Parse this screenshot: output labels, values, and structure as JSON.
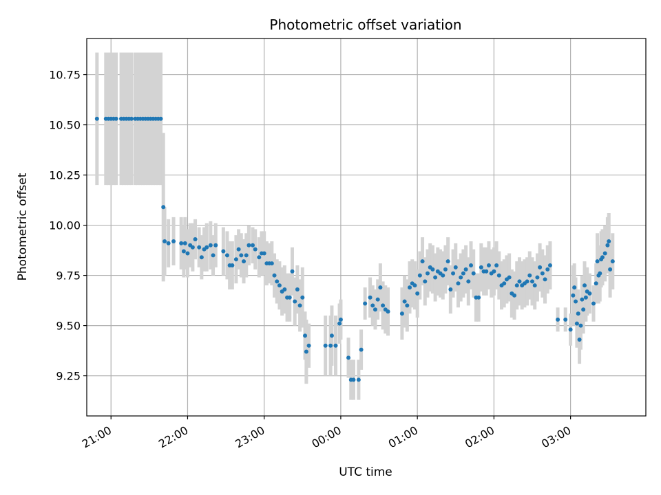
{
  "chart_data": {
    "type": "scatter",
    "title": "Photometric offset variation",
    "xlabel": "UTC time",
    "ylabel": "Photometric offset",
    "x_ticks": [
      "21:00",
      "22:00",
      "23:00",
      "00:00",
      "01:00",
      "02:00",
      "03:00"
    ],
    "y_ticks": [
      "9.25",
      "9.50",
      "9.75",
      "10.00",
      "10.25",
      "10.50",
      "10.75"
    ],
    "xlim": [
      "20:41",
      "03:59"
    ],
    "ylim": [
      9.05,
      10.93
    ],
    "grid": true,
    "colors": {
      "points": "#1f77b4",
      "errorbars": "#d3d3d3",
      "grid": "#b0b0b0"
    },
    "series": [
      {
        "points": [
          [
            "20:49",
            10.53,
            0.33
          ],
          [
            "20:56",
            10.53,
            0.33
          ],
          [
            "20:58",
            10.53,
            0.33
          ],
          [
            "21:00",
            10.53,
            0.33
          ],
          [
            "21:02",
            10.53,
            0.33
          ],
          [
            "21:04",
            10.53,
            0.33
          ],
          [
            "21:08",
            10.53,
            0.33
          ],
          [
            "21:10",
            10.53,
            0.33
          ],
          [
            "21:12",
            10.53,
            0.33
          ],
          [
            "21:14",
            10.53,
            0.33
          ],
          [
            "21:16",
            10.53,
            0.33
          ],
          [
            "21:19",
            10.53,
            0.33
          ],
          [
            "21:21",
            10.53,
            0.33
          ],
          [
            "21:23",
            10.53,
            0.33
          ],
          [
            "21:25",
            10.53,
            0.33
          ],
          [
            "21:27",
            10.53,
            0.33
          ],
          [
            "21:29",
            10.53,
            0.33
          ],
          [
            "21:31",
            10.53,
            0.33
          ],
          [
            "21:33",
            10.53,
            0.33
          ],
          [
            "21:35",
            10.53,
            0.33
          ],
          [
            "21:37",
            10.53,
            0.33
          ],
          [
            "21:39",
            10.53,
            0.33
          ],
          [
            "21:41",
            10.09,
            0.37
          ],
          [
            "21:42",
            9.92,
            0.17
          ],
          [
            "21:45",
            9.91,
            0.12
          ],
          [
            "21:49",
            9.92,
            0.12
          ],
          [
            "21:55",
            9.91,
            0.13
          ],
          [
            "21:57",
            9.87,
            0.13
          ],
          [
            "21:58",
            9.91,
            0.13
          ],
          [
            "22:00",
            9.86,
            0.12
          ],
          [
            "22:02",
            9.9,
            0.11
          ],
          [
            "22:04",
            9.89,
            0.12
          ],
          [
            "22:06",
            9.93,
            0.1
          ],
          [
            "22:09",
            9.89,
            0.1
          ],
          [
            "22:11",
            9.84,
            0.11
          ],
          [
            "22:13",
            9.88,
            0.11
          ],
          [
            "22:15",
            9.89,
            0.12
          ],
          [
            "22:18",
            9.9,
            0.12
          ],
          [
            "22:20",
            9.85,
            0.1
          ],
          [
            "22:22",
            9.9,
            0.11
          ],
          [
            "22:28",
            9.87,
            0.12
          ],
          [
            "22:31",
            9.85,
            0.12
          ],
          [
            "22:33",
            9.8,
            0.12
          ],
          [
            "22:35",
            9.8,
            0.12
          ],
          [
            "22:38",
            9.83,
            0.12
          ],
          [
            "22:40",
            9.88,
            0.1
          ],
          [
            "22:42",
            9.85,
            0.11
          ],
          [
            "22:44",
            9.82,
            0.11
          ],
          [
            "22:46",
            9.85,
            0.11
          ],
          [
            "22:48",
            9.9,
            0.1
          ],
          [
            "22:51",
            9.9,
            0.09
          ],
          [
            "22:53",
            9.88,
            0.1
          ],
          [
            "22:56",
            9.84,
            0.1
          ],
          [
            "22:58",
            9.86,
            0.11
          ],
          [
            "23:00",
            9.86,
            0.11
          ],
          [
            "23:02",
            9.81,
            0.11
          ],
          [
            "23:04",
            9.81,
            0.1
          ],
          [
            "23:06",
            9.81,
            0.11
          ],
          [
            "23:08",
            9.75,
            0.11
          ],
          [
            "23:10",
            9.72,
            0.11
          ],
          [
            "23:12",
            9.7,
            0.12
          ],
          [
            "23:14",
            9.67,
            0.12
          ],
          [
            "23:16",
            9.68,
            0.12
          ],
          [
            "23:18",
            9.64,
            0.12
          ],
          [
            "23:20",
            9.64,
            0.12
          ],
          [
            "23:22",
            9.77,
            0.12
          ],
          [
            "23:24",
            9.62,
            0.12
          ],
          [
            "23:26",
            9.68,
            0.12
          ],
          [
            "23:28",
            9.6,
            0.13
          ],
          [
            "23:30",
            9.64,
            0.15
          ],
          [
            "23:32",
            9.45,
            0.12
          ],
          [
            "23:33",
            9.37,
            0.16
          ],
          [
            "23:35",
            9.4,
            0.11
          ],
          [
            "23:48",
            9.4,
            0.15
          ],
          [
            "23:52",
            9.4,
            0.15
          ],
          [
            "23:53",
            9.45,
            0.15
          ],
          [
            "23:56",
            9.4,
            0.15
          ],
          [
            "23:59",
            9.51,
            0.1
          ],
          [
            "00:00",
            9.53,
            0.1
          ],
          [
            "00:06",
            9.34,
            0.1
          ],
          [
            "00:08",
            9.23,
            0.1
          ],
          [
            "00:10",
            9.23,
            0.1
          ],
          [
            "00:14",
            9.23,
            0.1
          ],
          [
            "00:16",
            9.38,
            0.1
          ],
          [
            "00:19",
            9.61,
            0.08
          ],
          [
            "00:23",
            9.64,
            0.1
          ],
          [
            "00:25",
            9.6,
            0.1
          ],
          [
            "00:27",
            9.58,
            0.1
          ],
          [
            "00:29",
            9.63,
            0.1
          ],
          [
            "00:31",
            9.69,
            0.12
          ],
          [
            "00:33",
            9.6,
            0.12
          ],
          [
            "00:35",
            9.58,
            0.12
          ],
          [
            "00:37",
            9.57,
            0.12
          ],
          [
            "00:48",
            9.56,
            0.13
          ],
          [
            "00:50",
            9.62,
            0.13
          ],
          [
            "00:52",
            9.6,
            0.13
          ],
          [
            "00:54",
            9.69,
            0.13
          ],
          [
            "00:56",
            9.71,
            0.12
          ],
          [
            "00:58",
            9.7,
            0.12
          ],
          [
            "01:00",
            9.66,
            0.12
          ],
          [
            "01:02",
            9.75,
            0.12
          ],
          [
            "01:04",
            9.82,
            0.12
          ],
          [
            "01:06",
            9.72,
            0.12
          ],
          [
            "01:08",
            9.76,
            0.12
          ],
          [
            "01:10",
            9.79,
            0.12
          ],
          [
            "01:12",
            9.78,
            0.12
          ],
          [
            "01:14",
            9.74,
            0.12
          ],
          [
            "01:16",
            9.77,
            0.12
          ],
          [
            "01:18",
            9.76,
            0.12
          ],
          [
            "01:20",
            9.75,
            0.12
          ],
          [
            "01:22",
            9.78,
            0.12
          ],
          [
            "01:24",
            9.82,
            0.12
          ],
          [
            "01:26",
            9.68,
            0.12
          ],
          [
            "01:28",
            9.76,
            0.12
          ],
          [
            "01:30",
            9.79,
            0.12
          ],
          [
            "01:32",
            9.71,
            0.12
          ],
          [
            "01:34",
            9.74,
            0.12
          ],
          [
            "01:36",
            9.76,
            0.12
          ],
          [
            "01:38",
            9.78,
            0.12
          ],
          [
            "01:40",
            9.72,
            0.12
          ],
          [
            "01:42",
            9.8,
            0.12
          ],
          [
            "01:44",
            9.76,
            0.12
          ],
          [
            "01:46",
            9.64,
            0.12
          ],
          [
            "01:48",
            9.64,
            0.12
          ],
          [
            "01:50",
            9.79,
            0.12
          ],
          [
            "01:52",
            9.77,
            0.12
          ],
          [
            "01:54",
            9.77,
            0.12
          ],
          [
            "01:56",
            9.8,
            0.12
          ],
          [
            "01:58",
            9.76,
            0.12
          ],
          [
            "02:00",
            9.77,
            0.12
          ],
          [
            "02:02",
            9.8,
            0.12
          ],
          [
            "02:04",
            9.75,
            0.12
          ],
          [
            "02:06",
            9.7,
            0.12
          ],
          [
            "02:08",
            9.71,
            0.12
          ],
          [
            "02:10",
            9.73,
            0.12
          ],
          [
            "02:12",
            9.74,
            0.12
          ],
          [
            "02:14",
            9.66,
            0.12
          ],
          [
            "02:16",
            9.65,
            0.12
          ],
          [
            "02:18",
            9.7,
            0.12
          ],
          [
            "02:20",
            9.72,
            0.12
          ],
          [
            "02:22",
            9.7,
            0.12
          ],
          [
            "02:24",
            9.71,
            0.12
          ],
          [
            "02:26",
            9.72,
            0.12
          ],
          [
            "02:28",
            9.75,
            0.12
          ],
          [
            "02:30",
            9.72,
            0.12
          ],
          [
            "02:32",
            9.7,
            0.12
          ],
          [
            "02:34",
            9.74,
            0.12
          ],
          [
            "02:36",
            9.79,
            0.12
          ],
          [
            "02:38",
            9.76,
            0.12
          ],
          [
            "02:40",
            9.73,
            0.12
          ],
          [
            "02:42",
            9.78,
            0.12
          ],
          [
            "02:44",
            9.8,
            0.12
          ],
          [
            "02:50",
            9.53,
            0.06
          ],
          [
            "02:56",
            9.53,
            0.06
          ],
          [
            "03:00",
            9.48,
            0.08
          ],
          [
            "03:02",
            9.65,
            0.15
          ],
          [
            "03:03",
            9.69,
            0.12
          ],
          [
            "03:04",
            9.62,
            0.12
          ],
          [
            "03:05",
            9.51,
            0.12
          ],
          [
            "03:06",
            9.56,
            0.12
          ],
          [
            "03:07",
            9.43,
            0.12
          ],
          [
            "03:08",
            9.5,
            0.12
          ],
          [
            "03:09",
            9.63,
            0.12
          ],
          [
            "03:10",
            9.58,
            0.12
          ],
          [
            "03:11",
            9.7,
            0.12
          ],
          [
            "03:12",
            9.64,
            0.12
          ],
          [
            "03:13",
            9.67,
            0.12
          ],
          [
            "03:15",
            9.66,
            0.1
          ],
          [
            "03:18",
            9.61,
            0.09
          ],
          [
            "03:20",
            9.71,
            0.1
          ],
          [
            "03:21",
            9.82,
            0.14
          ],
          [
            "03:22",
            9.75,
            0.14
          ],
          [
            "03:23",
            9.76,
            0.14
          ],
          [
            "03:24",
            9.83,
            0.14
          ],
          [
            "03:25",
            9.84,
            0.14
          ],
          [
            "03:27",
            9.86,
            0.14
          ],
          [
            "03:29",
            9.9,
            0.14
          ],
          [
            "03:30",
            9.92,
            0.14
          ],
          [
            "03:31",
            9.78,
            0.14
          ],
          [
            "03:33",
            9.82,
            0.14
          ]
        ]
      }
    ]
  }
}
